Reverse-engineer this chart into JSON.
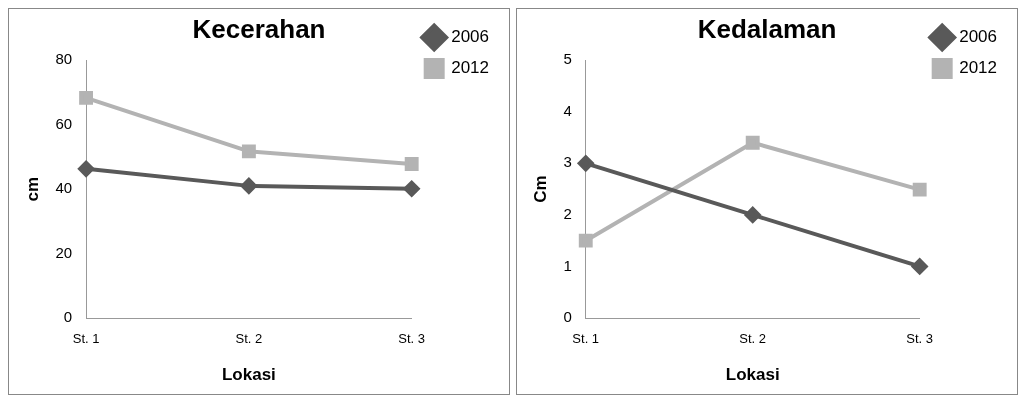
{
  "chart_data": [
    {
      "type": "line",
      "title": "Kecerahan",
      "xlabel": "Lokasi",
      "ylabel": "cm",
      "categories": [
        "St. 1",
        "St. 2",
        "St. 3"
      ],
      "series": [
        {
          "name": "2006",
          "color": "#595959",
          "marker": "diamond",
          "values": [
            46.3,
            41,
            40.1
          ]
        },
        {
          "name": "2012",
          "color": "#b3b3b3",
          "marker": "square",
          "values": [
            68.3,
            51.7,
            47.8
          ]
        }
      ],
      "ylim": [
        0,
        80
      ],
      "yticks": [
        0,
        20,
        40,
        60,
        80
      ],
      "grid": false,
      "legend": "right"
    },
    {
      "type": "line",
      "title": "Kedalaman",
      "xlabel": "Lokasi",
      "ylabel": "Cm",
      "categories": [
        "St. 1",
        "St. 2",
        "St. 3"
      ],
      "series": [
        {
          "name": "2006",
          "color": "#595959",
          "marker": "diamond",
          "values": [
            3,
            2,
            1
          ]
        },
        {
          "name": "2012",
          "color": "#b3b3b3",
          "marker": "square",
          "values": [
            1.5,
            3.4,
            2.49
          ]
        }
      ],
      "ylim": [
        0,
        5
      ],
      "yticks": [
        0,
        1,
        2,
        3,
        4,
        5
      ],
      "grid": false,
      "legend": "right"
    }
  ]
}
